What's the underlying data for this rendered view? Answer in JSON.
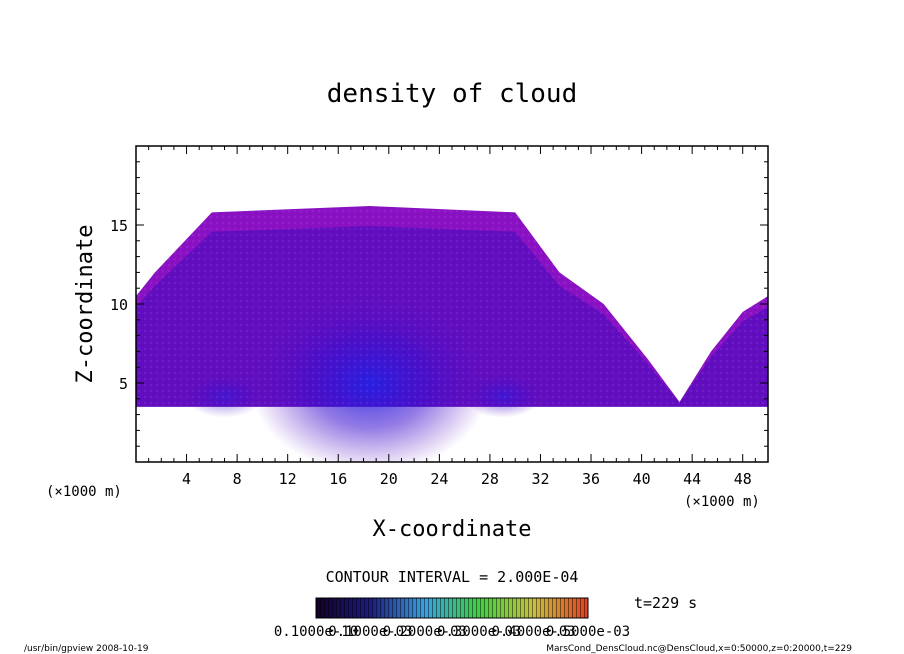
{
  "chart_data": {
    "type": "heatmap",
    "title": "density of cloud",
    "xlabel": "X-coordinate",
    "ylabel": "Z-coordinate",
    "x_unit": "(×1000 m)",
    "x_unit_right": "(×1000 m)",
    "xlim": [
      0,
      50
    ],
    "ylim": [
      0,
      20
    ],
    "x_ticks": [
      4,
      8,
      12,
      16,
      20,
      24,
      28,
      32,
      36,
      40,
      44,
      48
    ],
    "y_ticks": [
      5,
      10,
      15
    ],
    "cloud_region": {
      "base_z": 3.5,
      "outline": [
        [
          0,
          10.5
        ],
        [
          1.5,
          12.0
        ],
        [
          6,
          15.8
        ],
        [
          18.5,
          16.2
        ],
        [
          30,
          15.8
        ],
        [
          33.5,
          12.0
        ],
        [
          37,
          10.0
        ],
        [
          40.5,
          6.5
        ],
        [
          43,
          3.8
        ],
        [
          45.5,
          7.0
        ],
        [
          48,
          9.5
        ],
        [
          50,
          10.5
        ]
      ],
      "core_center": [
        18.5,
        5.0
      ],
      "colors": {
        "edge": "#8a11c4",
        "mid": "#5a0ec0",
        "core": "#1818e0"
      }
    },
    "contour_interval": "CONTOUR INTERVAL = 2.000E-04",
    "time_label": "t=229 s",
    "colorbar_labels": [
      "0.1000e-10",
      "0.1000e-03",
      "0.2000e-03",
      "0.3000e-03",
      "0.4000e-03",
      "0.5000e-03"
    ],
    "colorbar_colors": [
      "#140028",
      "#1c1c80",
      "#3aa0e0",
      "#40d040",
      "#c8c040",
      "#e04020"
    ]
  },
  "footer": {
    "left": "/usr/bin/gpview   2008-10-19",
    "right": "MarsCond_DensCloud.nc@DensCloud,x=0:50000,z=0:20000,t=229"
  }
}
